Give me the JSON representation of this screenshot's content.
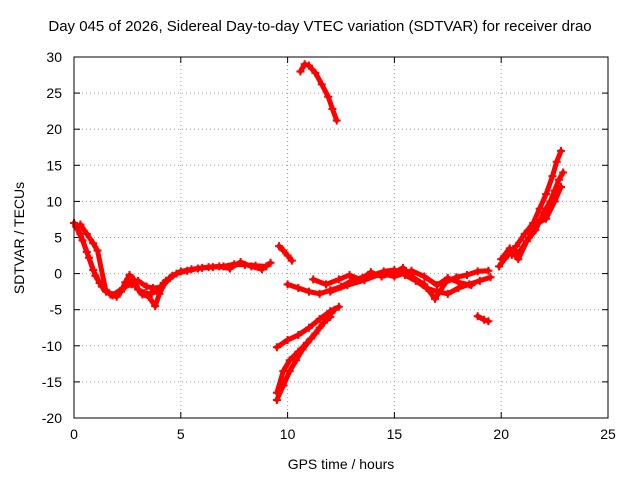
{
  "chart_data": {
    "type": "scatter",
    "title": "Day 045 of 2026, Sidereal Day-to-day VTEC variation (SDTVAR) for receiver drao",
    "xlabel": "GPS time / hours",
    "ylabel": "SDTVAR / TECUs",
    "xlim": [
      0,
      25
    ],
    "ylim": [
      -20,
      30
    ],
    "xticks": [
      0,
      5,
      10,
      15,
      20,
      25
    ],
    "yticks": [
      -20,
      -15,
      -10,
      -5,
      0,
      5,
      10,
      15,
      20,
      25,
      30
    ],
    "grid": true,
    "series_color": "#ff0000",
    "series": [
      {
        "name": "main-trace-a",
        "points": [
          [
            0.0,
            7.0
          ],
          [
            0.3,
            5.5
          ],
          [
            0.6,
            3.0
          ],
          [
            0.9,
            0.5
          ],
          [
            1.2,
            -1.3
          ],
          [
            1.5,
            -2.3
          ],
          [
            1.8,
            -3.0
          ],
          [
            2.0,
            -3.2
          ],
          [
            2.2,
            -2.5
          ],
          [
            2.4,
            -1.2
          ],
          [
            2.6,
            -0.2
          ],
          [
            2.8,
            -0.8
          ],
          [
            3.0,
            -2.2
          ],
          [
            3.3,
            -2.7
          ],
          [
            3.6,
            -2.8
          ],
          [
            3.9,
            -2.3
          ],
          [
            4.2,
            -1.3
          ],
          [
            4.6,
            -0.3
          ],
          [
            5.0,
            0.3
          ],
          [
            5.5,
            0.6
          ],
          [
            6.0,
            0.8
          ],
          [
            6.5,
            0.9
          ],
          [
            7.0,
            1.0
          ],
          [
            7.5,
            1.3
          ],
          [
            8.0,
            1.2
          ],
          [
            8.5,
            1.1
          ],
          [
            9.0,
            1.0
          ]
        ]
      },
      {
        "name": "main-trace-b",
        "points": [
          [
            0.1,
            6.5
          ],
          [
            0.4,
            4.6
          ],
          [
            0.7,
            2.2
          ],
          [
            1.0,
            -0.3
          ],
          [
            1.3,
            -1.8
          ],
          [
            1.7,
            -2.9
          ],
          [
            2.0,
            -3.0
          ],
          [
            2.3,
            -2.0
          ],
          [
            2.6,
            -0.8
          ],
          [
            2.9,
            -1.8
          ],
          [
            3.2,
            -2.9
          ],
          [
            3.5,
            -3.2
          ],
          [
            3.8,
            -4.5
          ],
          [
            4.0,
            -2.8
          ],
          [
            4.3,
            -1.0
          ],
          [
            4.8,
            0.0
          ],
          [
            5.3,
            0.4
          ],
          [
            5.8,
            0.7
          ],
          [
            6.3,
            0.9
          ],
          [
            6.8,
            1.0
          ],
          [
            7.3,
            0.7
          ],
          [
            7.8,
            1.6
          ],
          [
            8.3,
            1.0
          ],
          [
            8.8,
            0.6
          ],
          [
            9.2,
            1.5
          ]
        ]
      },
      {
        "name": "main-trace-c",
        "points": [
          [
            0.3,
            6.8
          ],
          [
            0.6,
            5.5
          ],
          [
            0.9,
            4.2
          ],
          [
            1.1,
            3.2
          ],
          [
            1.5,
            -2.5
          ],
          [
            1.8,
            -3.0
          ],
          [
            2.4,
            -1.8
          ],
          [
            2.7,
            -1.5
          ],
          [
            3.0,
            -1.0
          ],
          [
            3.4,
            -1.8
          ],
          [
            3.7,
            -2.0
          ],
          [
            4.1,
            -1.9
          ],
          [
            4.5,
            -0.6
          ]
        ]
      },
      {
        "name": "segment-mid-upper",
        "points": [
          [
            9.6,
            3.8
          ],
          [
            9.8,
            3.2
          ],
          [
            10.0,
            2.5
          ],
          [
            10.2,
            1.8
          ]
        ]
      },
      {
        "name": "segment-peak",
        "points": [
          [
            10.6,
            28.0
          ],
          [
            10.8,
            29.0
          ],
          [
            11.0,
            28.8
          ],
          [
            11.3,
            27.8
          ],
          [
            11.6,
            26.2
          ],
          [
            11.9,
            24.5
          ],
          [
            12.1,
            22.8
          ],
          [
            12.3,
            21.2
          ]
        ]
      },
      {
        "name": "segment-low-a",
        "points": [
          [
            9.5,
            -17.5
          ],
          [
            9.8,
            -15.5
          ],
          [
            10.1,
            -13.5
          ],
          [
            10.4,
            -12.0
          ],
          [
            10.7,
            -10.5
          ],
          [
            11.1,
            -9.0
          ],
          [
            11.5,
            -7.5
          ],
          [
            11.9,
            -6.0
          ],
          [
            12.2,
            -5.0
          ]
        ]
      },
      {
        "name": "segment-low-b",
        "points": [
          [
            9.5,
            -16.5
          ],
          [
            9.8,
            -13.5
          ],
          [
            10.1,
            -12.0
          ],
          [
            10.5,
            -10.8
          ],
          [
            10.9,
            -9.6
          ],
          [
            11.3,
            -8.3
          ],
          [
            11.7,
            -6.8
          ],
          [
            12.0,
            -6.0
          ]
        ]
      },
      {
        "name": "segment-low-c",
        "points": [
          [
            9.5,
            -10.2
          ],
          [
            10.0,
            -9.2
          ],
          [
            10.5,
            -8.5
          ],
          [
            11.0,
            -7.5
          ],
          [
            11.5,
            -6.3
          ],
          [
            12.0,
            -5.2
          ],
          [
            12.4,
            -4.6
          ]
        ]
      },
      {
        "name": "middle-trace-a",
        "points": [
          [
            10.0,
            -1.5
          ],
          [
            10.5,
            -2.0
          ],
          [
            11.0,
            -2.5
          ],
          [
            11.5,
            -2.8
          ],
          [
            12.0,
            -2.3
          ],
          [
            12.5,
            -1.8
          ],
          [
            13.0,
            -1.0
          ],
          [
            13.5,
            -0.6
          ],
          [
            14.0,
            -0.2
          ],
          [
            14.5,
            0.3
          ],
          [
            15.0,
            0.5
          ],
          [
            15.5,
            -0.2
          ],
          [
            16.0,
            -1.0
          ],
          [
            16.5,
            -2.0
          ],
          [
            17.0,
            -2.5
          ],
          [
            17.5,
            -2.8
          ],
          [
            18.0,
            -2.0
          ],
          [
            18.5,
            -1.5
          ],
          [
            19.0,
            -1.0
          ],
          [
            19.5,
            -0.5
          ]
        ]
      },
      {
        "name": "middle-trace-b",
        "points": [
          [
            11.2,
            -0.8
          ],
          [
            11.8,
            -1.5
          ],
          [
            12.4,
            -0.8
          ],
          [
            12.9,
            -0.2
          ],
          [
            13.4,
            -0.8
          ],
          [
            13.9,
            0.2
          ],
          [
            14.4,
            -0.4
          ],
          [
            14.9,
            0.0
          ],
          [
            15.4,
            0.8
          ],
          [
            15.9,
            -0.6
          ],
          [
            16.4,
            -1.5
          ],
          [
            16.9,
            -3.5
          ],
          [
            17.4,
            -1.2
          ],
          [
            17.9,
            -0.5
          ],
          [
            18.4,
            -0.2
          ],
          [
            18.9,
            0.3
          ],
          [
            19.4,
            0.4
          ]
        ]
      },
      {
        "name": "middle-trace-c",
        "points": [
          [
            12.0,
            -2.5
          ],
          [
            12.8,
            -1.6
          ],
          [
            13.6,
            -0.9
          ],
          [
            14.4,
            0.0
          ],
          [
            15.0,
            -0.4
          ],
          [
            15.8,
            0.4
          ],
          [
            16.4,
            -0.4
          ],
          [
            17.0,
            -1.6
          ],
          [
            17.5,
            -0.6
          ],
          [
            18.0,
            -1.2
          ],
          [
            18.6,
            -1.6
          ]
        ]
      },
      {
        "name": "segment-late-dip",
        "points": [
          [
            18.9,
            -5.9
          ],
          [
            19.2,
            -6.4
          ],
          [
            19.4,
            -6.6
          ]
        ]
      },
      {
        "name": "rise-trace-a",
        "points": [
          [
            19.9,
            1.0
          ],
          [
            20.3,
            2.5
          ],
          [
            20.7,
            3.8
          ],
          [
            21.1,
            5.5
          ],
          [
            21.5,
            7.0
          ],
          [
            21.8,
            9.0
          ],
          [
            22.1,
            11.0
          ],
          [
            22.4,
            13.5
          ],
          [
            22.6,
            15.5
          ],
          [
            22.8,
            17.0
          ]
        ]
      },
      {
        "name": "rise-trace-b",
        "points": [
          [
            20.0,
            2.0
          ],
          [
            20.4,
            3.5
          ],
          [
            20.8,
            2.0
          ],
          [
            21.2,
            4.5
          ],
          [
            21.6,
            6.0
          ],
          [
            22.0,
            8.5
          ],
          [
            22.3,
            10.0
          ],
          [
            22.5,
            11.5
          ],
          [
            22.7,
            13.0
          ],
          [
            22.9,
            14.0
          ]
        ]
      },
      {
        "name": "rise-trace-c",
        "points": [
          [
            20.5,
            2.6
          ],
          [
            20.9,
            3.2
          ],
          [
            21.3,
            5.0
          ],
          [
            21.7,
            7.0
          ],
          [
            22.1,
            7.6
          ],
          [
            22.5,
            10.0
          ],
          [
            22.8,
            12.0
          ]
        ]
      }
    ]
  }
}
